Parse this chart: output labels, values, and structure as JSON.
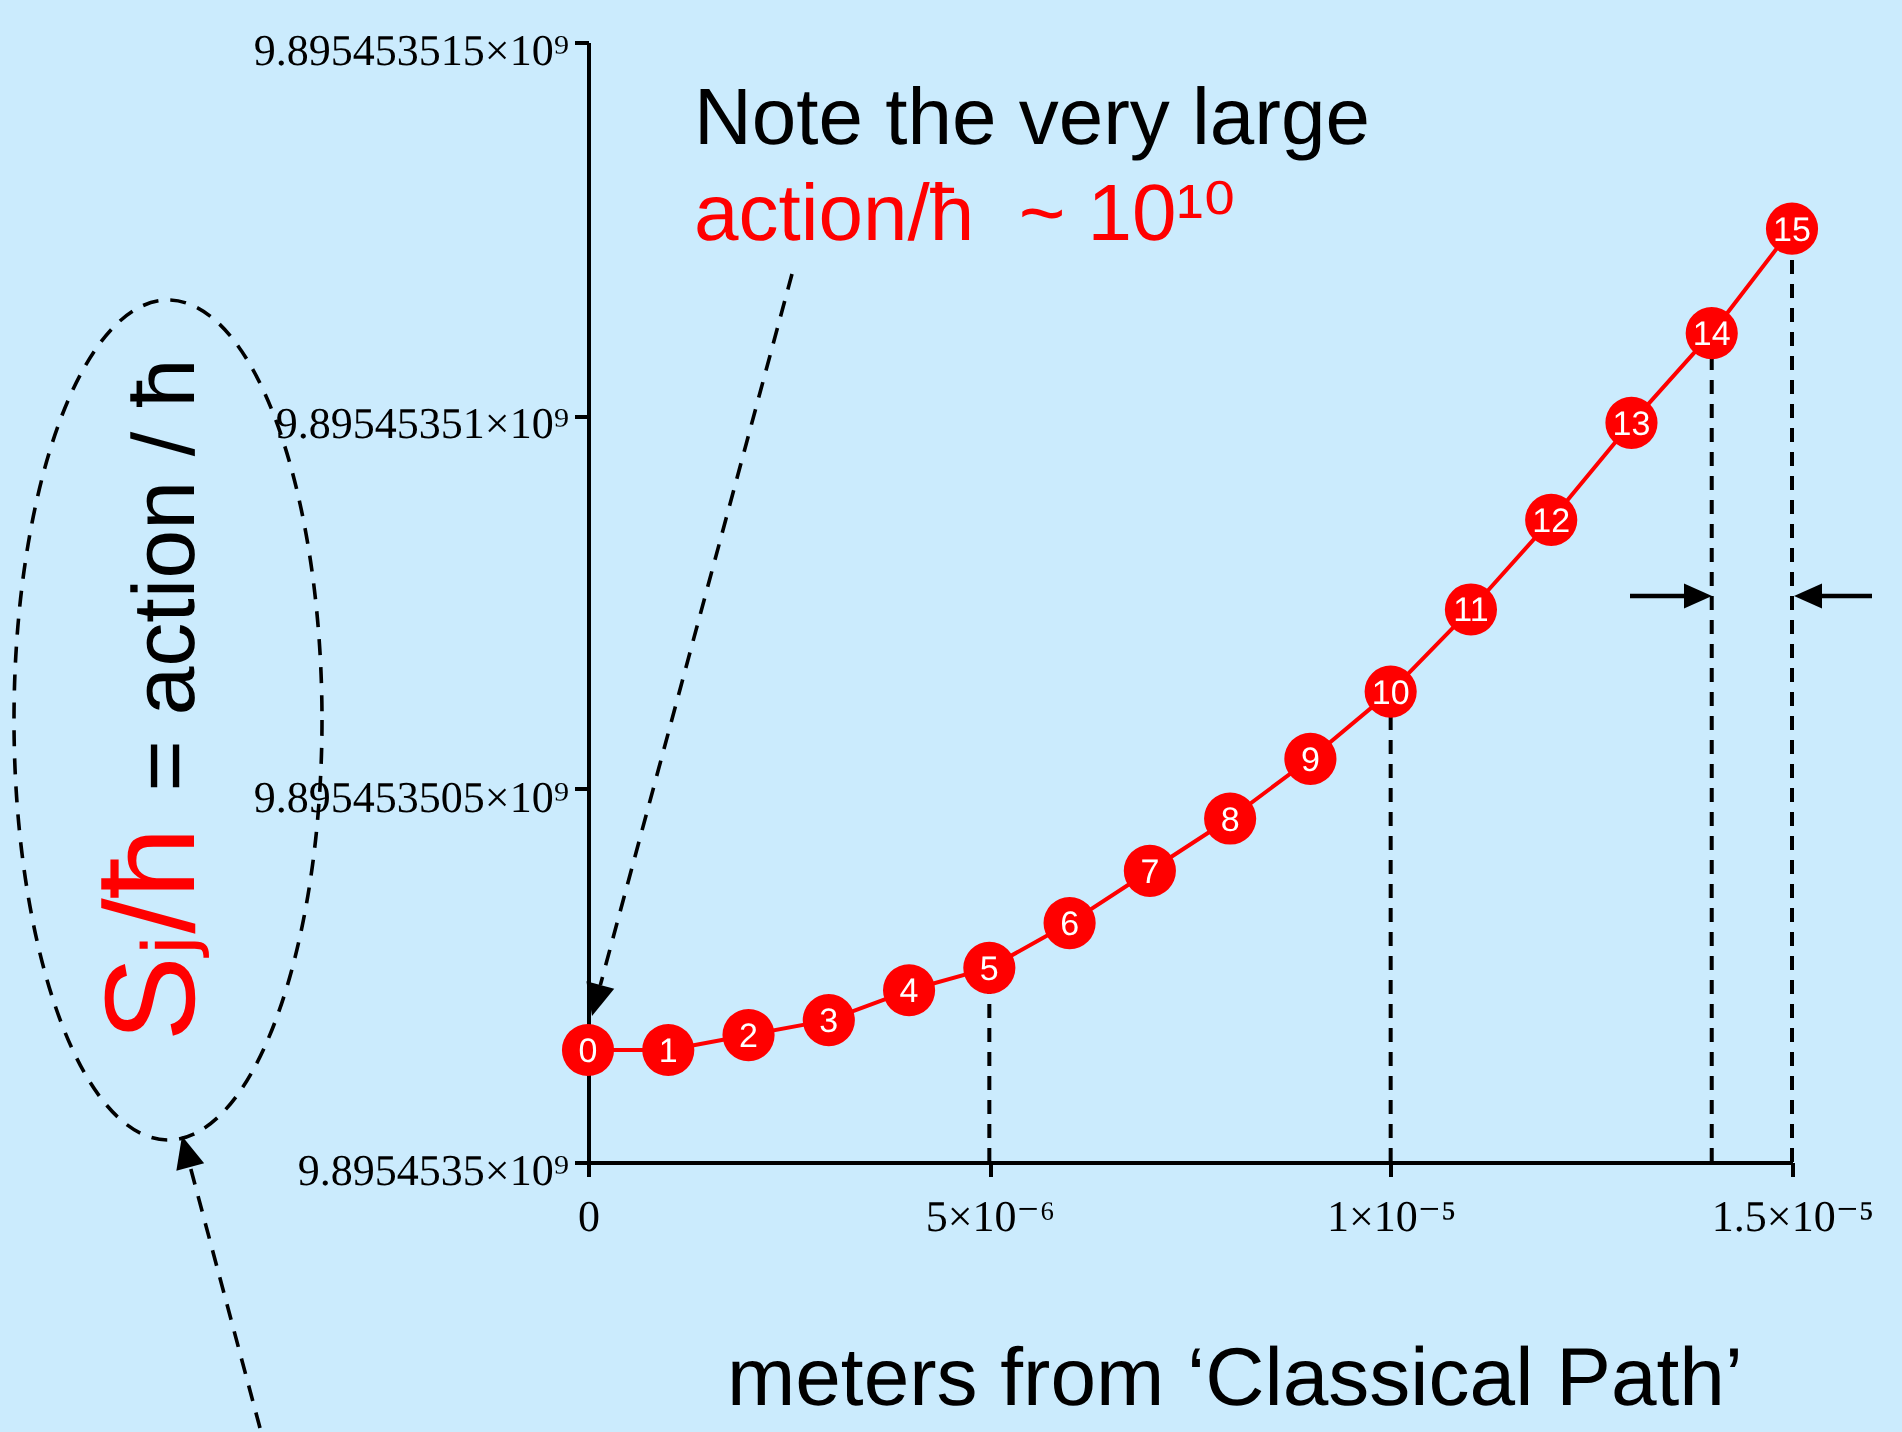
{
  "chart_data": {
    "type": "line",
    "xlabel": "meters from ‘Classical Path’",
    "ylabel": "Sⱼ/ħ = action / ħ",
    "annotations": [
      "Note the very large",
      "action/ħ  ~ 10¹⁰",
      {
        "text": "0",
        "x": 0,
        "y": 9895453501.5
      },
      {
        "text": "1",
        "x": 1e-06,
        "y": 9895453501.5
      },
      {
        "text": "2",
        "x": 2e-06,
        "y": 9895453501.7
      },
      {
        "text": "3",
        "x": 3e-06,
        "y": 9895453501.9
      },
      {
        "text": "4",
        "x": 4e-06,
        "y": 9895453502.3
      },
      {
        "text": "5",
        "x": 5e-06,
        "y": 9895453502.6
      },
      {
        "text": "6",
        "x": 6e-06,
        "y": 9895453503.2
      },
      {
        "text": "7",
        "x": 7e-06,
        "y": 9895453503.9
      },
      {
        "text": "8",
        "x": 8e-06,
        "y": 9895453504.6
      },
      {
        "text": "9",
        "x": 9e-06,
        "y": 9895453505.4
      },
      {
        "text": "10",
        "x": 1e-05,
        "y": 9895453506.3
      },
      {
        "text": "11",
        "x": 1.1e-05,
        "y": 9895453507.4
      },
      {
        "text": "12",
        "x": 1.2e-05,
        "y": 9895453508.6
      },
      {
        "text": "13",
        "x": 1.3e-05,
        "y": 9895453509.9
      },
      {
        "text": "14",
        "x": 1.4e-05,
        "y": 9895453511.1
      },
      {
        "text": "15",
        "x": 1.5e-05,
        "y": 9895453512.5
      }
    ],
    "x": [
      0,
      1e-06,
      2e-06,
      3e-06,
      4e-06,
      5e-06,
      6e-06,
      7e-06,
      8e-06,
      9e-06,
      1e-05,
      1.1e-05,
      1.2e-05,
      1.3e-05,
      1.4e-05,
      1.5e-05
    ],
    "values": [
      9895453501.5,
      9895453501.5,
      9895453501.7,
      9895453501.9,
      9895453502.3,
      9895453502.6,
      9895453503.2,
      9895453503.9,
      9895453504.6,
      9895453505.4,
      9895453506.3,
      9895453507.4,
      9895453508.6,
      9895453509.9,
      9895453511.1,
      9895453512.5
    ],
    "color": "#ff0000",
    "marker": "circle",
    "line_style": "solid",
    "xlim": [
      0,
      1.5e-05
    ],
    "xticks": [
      0,
      {
        "value": 5e-06,
        "label": "5×10⁻⁶"
      },
      {
        "value": 1e-05,
        "label": "1×10⁻⁵"
      },
      {
        "value": 1.5e-05,
        "label": "1.5×10⁻⁵"
      }
    ],
    "ylim": [
      9895453500,
      9895453515
    ],
    "yticks": [
      {
        "value": 9895453500,
        "label": "9.8954535×10⁹"
      },
      {
        "value": 9895453505,
        "label": "9.895453505×10⁹"
      },
      {
        "value": 9895453510,
        "label": "9.89545351×10⁹"
      },
      {
        "value": 9895453515,
        "label": "9.895453515×10⁹"
      }
    ],
    "ref_lines": [
      {
        "axis": "x",
        "value": 5e-06,
        "line_style": "dashed"
      },
      {
        "axis": "x",
        "value": 1e-05,
        "line_style": "dashed"
      },
      {
        "axis": "x",
        "value": 1.4e-05,
        "line_style": "dashed"
      },
      {
        "axis": "x",
        "value": 1.5e-05,
        "line_style": "dashed"
      }
    ]
  }
}
